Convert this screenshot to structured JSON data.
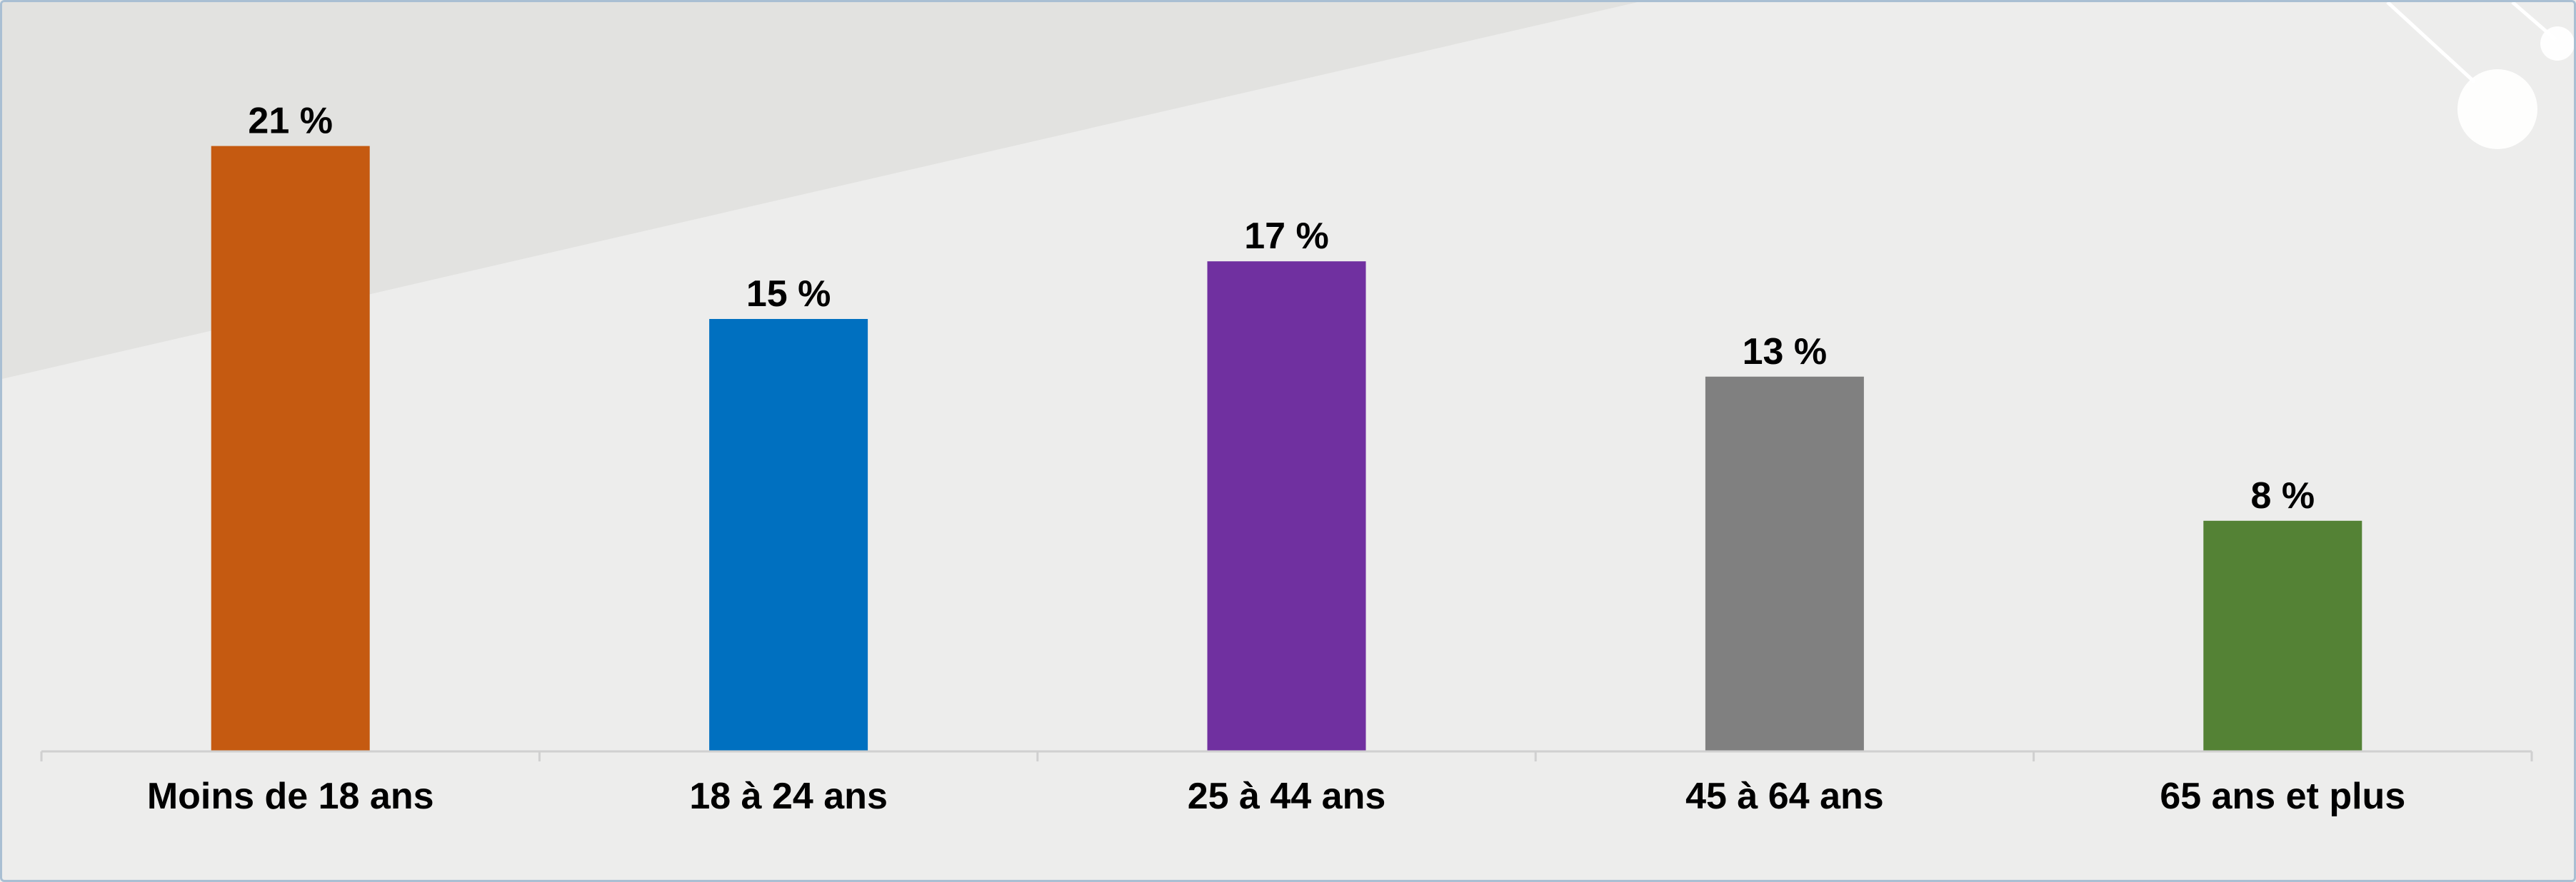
{
  "chart_data": {
    "type": "bar",
    "categories": [
      "Moins de 18 ans",
      "18 à 24 ans",
      "25 à 44 ans",
      "45 à 64 ans",
      "65 ans et plus"
    ],
    "values": [
      21,
      15,
      17,
      13,
      8
    ],
    "data_labels": [
      "21 %",
      "15 %",
      "17 %",
      "13 %",
      "8 %"
    ],
    "bar_colors": [
      "#c55a11",
      "#0070c0",
      "#7030a0",
      "#808080",
      "#548235"
    ],
    "ylim": [
      0,
      25
    ],
    "grid": false,
    "legend": "none"
  }
}
